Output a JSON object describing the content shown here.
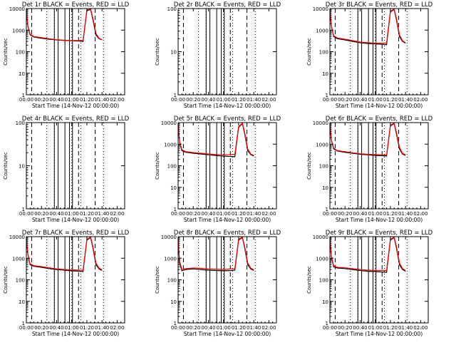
{
  "figure": {
    "xlabel": "Start Time (14-Nov-12 00:00:00)",
    "ylabel": "Counts/sec",
    "x_ticks": [
      "00:00",
      "00:20",
      "00:40",
      "01:00",
      "01:20",
      "01:40",
      "02:00"
    ],
    "y_ticks": [
      "1",
      "10",
      "100",
      "1000",
      "10000"
    ],
    "colors": {
      "events": "#000000",
      "lld": "#ff0000",
      "background": "#ffffff"
    }
  },
  "chart_data": [
    {
      "type": "line",
      "title": "Det 1r BLACK = Events, RED = LLD",
      "xlim": [
        0,
        130
      ],
      "ylim": [
        1,
        10000
      ],
      "yscale": "log",
      "has_data": true,
      "series": [
        {
          "x": [
            0,
            2,
            5,
            10,
            20,
            30,
            40,
            50,
            60,
            70,
            75,
            80,
            85,
            88,
            92,
            96,
            100
          ],
          "values": [
            9000,
            1500,
            600,
            480,
            420,
            380,
            350,
            330,
            320,
            310,
            300,
            8000,
            9000,
            3000,
            600,
            400,
            350
          ]
        },
        {
          "x": [
            0,
            2,
            5,
            10,
            20,
            30,
            40,
            50,
            60,
            70,
            75,
            80,
            85,
            88,
            92,
            96,
            100
          ],
          "values": [
            8500,
            1600,
            650,
            500,
            450,
            400,
            360,
            340,
            330,
            330,
            330,
            8500,
            9500,
            3500,
            700,
            420,
            360
          ]
        }
      ]
    },
    {
      "type": "line",
      "title": "Det 2r BLACK = Events, RED = LLD",
      "xlim": [
        0,
        130
      ],
      "ylim": [
        1,
        100
      ],
      "yscale": "log",
      "has_data": false,
      "series": [
        {
          "x": [],
          "values": []
        },
        {
          "x": [],
          "values": []
        }
      ]
    },
    {
      "type": "line",
      "title": "Det 3r BLACK = Events, RED = LLD",
      "xlim": [
        0,
        130
      ],
      "ylim": [
        1,
        10000
      ],
      "yscale": "log",
      "has_data": true,
      "series": [
        {
          "x": [
            0,
            2,
            5,
            10,
            20,
            30,
            40,
            50,
            60,
            70,
            75,
            80,
            85,
            88,
            92,
            96,
            100
          ],
          "values": [
            9000,
            1500,
            500,
            400,
            350,
            300,
            260,
            240,
            230,
            220,
            210,
            7000,
            9000,
            3000,
            500,
            300,
            250
          ]
        },
        {
          "x": [
            0,
            2,
            5,
            10,
            20,
            30,
            40,
            50,
            60,
            70,
            75,
            80,
            85,
            88,
            92,
            96,
            100
          ],
          "values": [
            8500,
            1600,
            550,
            430,
            380,
            330,
            280,
            260,
            250,
            250,
            250,
            7500,
            9500,
            3500,
            600,
            320,
            260
          ]
        }
      ]
    },
    {
      "type": "line",
      "title": "Det 4r BLACK = Events, RED = LLD",
      "xlim": [
        0,
        130
      ],
      "ylim": [
        1,
        100
      ],
      "yscale": "log",
      "has_data": false,
      "series": [
        {
          "x": [],
          "values": []
        },
        {
          "x": [],
          "values": []
        }
      ]
    },
    {
      "type": "line",
      "title": "Det 5r BLACK = Events, RED = LLD",
      "xlim": [
        0,
        130
      ],
      "ylim": [
        1,
        10000
      ],
      "yscale": "log",
      "has_data": true,
      "series": [
        {
          "x": [
            0,
            2,
            5,
            10,
            20,
            30,
            40,
            50,
            60,
            70,
            75,
            80,
            85,
            88,
            92,
            96,
            100
          ],
          "values": [
            9000,
            1200,
            500,
            420,
            380,
            350,
            320,
            300,
            280,
            270,
            260,
            6000,
            9000,
            3000,
            500,
            330,
            280
          ]
        },
        {
          "x": [
            0,
            2,
            5,
            10,
            20,
            30,
            40,
            50,
            60,
            70,
            75,
            80,
            85,
            88,
            92,
            96,
            100
          ],
          "values": [
            8500,
            1300,
            550,
            450,
            410,
            380,
            350,
            330,
            320,
            330,
            340,
            6500,
            9500,
            3500,
            600,
            350,
            300
          ]
        }
      ]
    },
    {
      "type": "line",
      "title": "Det 6r BLACK = Events, RED = LLD",
      "xlim": [
        0,
        130
      ],
      "ylim": [
        1,
        10000
      ],
      "yscale": "log",
      "has_data": true,
      "series": [
        {
          "x": [
            0,
            2,
            5,
            10,
            20,
            30,
            40,
            50,
            60,
            70,
            75,
            80,
            85,
            88,
            92,
            96,
            100
          ],
          "values": [
            9000,
            1500,
            600,
            480,
            420,
            380,
            340,
            320,
            300,
            290,
            280,
            7000,
            9000,
            3000,
            600,
            350,
            300
          ]
        },
        {
          "x": [
            0,
            2,
            5,
            10,
            20,
            30,
            40,
            50,
            60,
            70,
            75,
            80,
            85,
            88,
            92,
            96,
            100
          ],
          "values": [
            8500,
            1600,
            650,
            500,
            450,
            400,
            360,
            340,
            330,
            320,
            310,
            7500,
            9500,
            3500,
            700,
            380,
            320
          ]
        }
      ]
    },
    {
      "type": "line",
      "title": "Det 7r BLACK = Events, RED = LLD",
      "xlim": [
        0,
        130
      ],
      "ylim": [
        1,
        10000
      ],
      "yscale": "log",
      "has_data": true,
      "series": [
        {
          "x": [
            0,
            2,
            5,
            10,
            20,
            30,
            40,
            50,
            60,
            70,
            75,
            80,
            85,
            88,
            92,
            96,
            100
          ],
          "values": [
            9000,
            1500,
            500,
            420,
            380,
            330,
            300,
            280,
            260,
            250,
            240,
            7000,
            9000,
            3000,
            500,
            320,
            270
          ]
        },
        {
          "x": [
            0,
            2,
            5,
            10,
            20,
            30,
            40,
            50,
            60,
            70,
            75,
            80,
            85,
            88,
            92,
            96,
            100
          ],
          "values": [
            8500,
            1600,
            550,
            450,
            410,
            360,
            320,
            300,
            290,
            280,
            280,
            7500,
            9500,
            3500,
            600,
            350,
            290
          ]
        }
      ]
    },
    {
      "type": "line",
      "title": "Det 8r BLACK = Events, RED = LLD",
      "xlim": [
        0,
        130
      ],
      "ylim": [
        1,
        10000
      ],
      "yscale": "log",
      "has_data": true,
      "series": [
        {
          "x": [
            0,
            2,
            5,
            10,
            20,
            30,
            40,
            50,
            60,
            70,
            75,
            80,
            85,
            88,
            92,
            96,
            100
          ],
          "values": [
            9000,
            600,
            260,
            300,
            320,
            300,
            280,
            270,
            260,
            270,
            280,
            7000,
            9000,
            3000,
            500,
            320,
            270
          ]
        },
        {
          "x": [
            0,
            2,
            5,
            10,
            20,
            30,
            40,
            50,
            60,
            70,
            75,
            80,
            85,
            88,
            92,
            96,
            100
          ],
          "values": [
            8500,
            700,
            300,
            330,
            350,
            340,
            320,
            310,
            300,
            320,
            330,
            7500,
            9500,
            3500,
            600,
            350,
            290
          ]
        }
      ]
    },
    {
      "type": "line",
      "title": "Det 9r BLACK = Events, RED = LLD",
      "xlim": [
        0,
        130
      ],
      "ylim": [
        1,
        10000
      ],
      "yscale": "log",
      "has_data": true,
      "series": [
        {
          "x": [
            0,
            2,
            5,
            10,
            20,
            30,
            40,
            50,
            60,
            70,
            75,
            80,
            85,
            88,
            92,
            96,
            100
          ],
          "values": [
            9000,
            1200,
            400,
            350,
            330,
            300,
            270,
            250,
            240,
            230,
            220,
            7000,
            9000,
            3000,
            500,
            300,
            250
          ]
        },
        {
          "x": [
            0,
            2,
            5,
            10,
            20,
            30,
            40,
            50,
            60,
            70,
            75,
            80,
            85,
            88,
            92,
            96,
            100
          ],
          "values": [
            8500,
            1300,
            450,
            380,
            360,
            330,
            300,
            280,
            270,
            270,
            270,
            7500,
            9500,
            3500,
            600,
            330,
            270
          ]
        }
      ]
    }
  ]
}
